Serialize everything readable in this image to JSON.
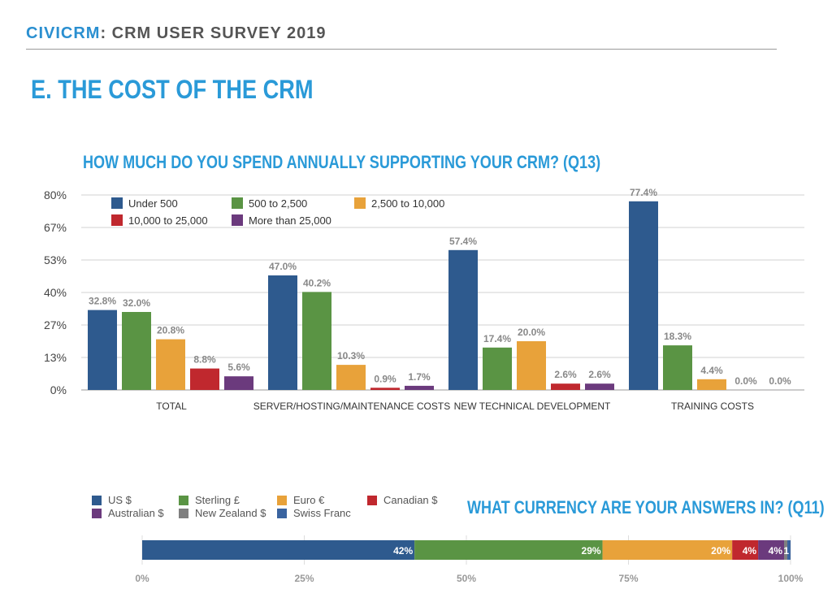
{
  "header": {
    "brand": "CIVICRM",
    "rest": ": CRM USER SURVEY 2019"
  },
  "section_title": "E. THE COST OF THE CRM",
  "chart_data": [
    {
      "type": "bar",
      "title": "HOW MUCH DO YOU SPEND ANNUALLY SUPPORTING YOUR CRM? (Q13)",
      "categories": [
        "TOTAL",
        "SERVER/HOSTING/MAINTENANCE COSTS",
        "NEW TECHNICAL DEVELOPMENT",
        "TRAINING COSTS"
      ],
      "ylim": [
        0,
        80
      ],
      "yticks": [
        "0%",
        "13%",
        "27%",
        "40%",
        "53%",
        "67%",
        "80%"
      ],
      "grid": true,
      "legend": "top-left",
      "series": [
        {
          "name": "Under 500",
          "color": "#2e5a8e",
          "values": [
            32.8,
            47.0,
            57.4,
            77.4
          ]
        },
        {
          "name": "500 to 2,500",
          "color": "#5a9444",
          "values": [
            32.0,
            40.2,
            17.4,
            18.3
          ]
        },
        {
          "name": "2,500 to 10,000",
          "color": "#e8a23a",
          "values": [
            20.8,
            10.3,
            20.0,
            4.4
          ]
        },
        {
          "name": "10,000 to 25,000",
          "color": "#c0282e",
          "values": [
            8.8,
            0.9,
            2.6,
            0.0
          ]
        },
        {
          "name": "More than 25,000",
          "color": "#6b3a7d",
          "values": [
            5.6,
            1.7,
            2.6,
            0.0
          ]
        }
      ]
    },
    {
      "type": "bar",
      "orientation": "horizontal-stacked",
      "title": "WHAT CURRENCY ARE YOUR ANSWERS IN? (Q11)",
      "xlim": [
        0,
        100
      ],
      "xticks": [
        "0%",
        "25%",
        "50%",
        "75%",
        "100%"
      ],
      "legend": "top-left",
      "series": [
        {
          "name": "US $",
          "color": "#2e5a8e",
          "value": 42,
          "label": "42%"
        },
        {
          "name": "Sterling £",
          "color": "#5a9444",
          "value": 29,
          "label": "29%"
        },
        {
          "name": "Euro €",
          "color": "#e8a23a",
          "value": 20,
          "label": "20%"
        },
        {
          "name": "Canadian $",
          "color": "#c0282e",
          "value": 4,
          "label": "4%"
        },
        {
          "name": "Australian $",
          "color": "#6b3a7d",
          "value": 4,
          "label": "4%"
        },
        {
          "name": "New Zealand $",
          "color": "#7f7f7f",
          "value": 0.5,
          "label": ""
        },
        {
          "name": "Swiss Franc",
          "color": "#3a64a0",
          "value": 0.5,
          "label": "1"
        }
      ]
    }
  ]
}
